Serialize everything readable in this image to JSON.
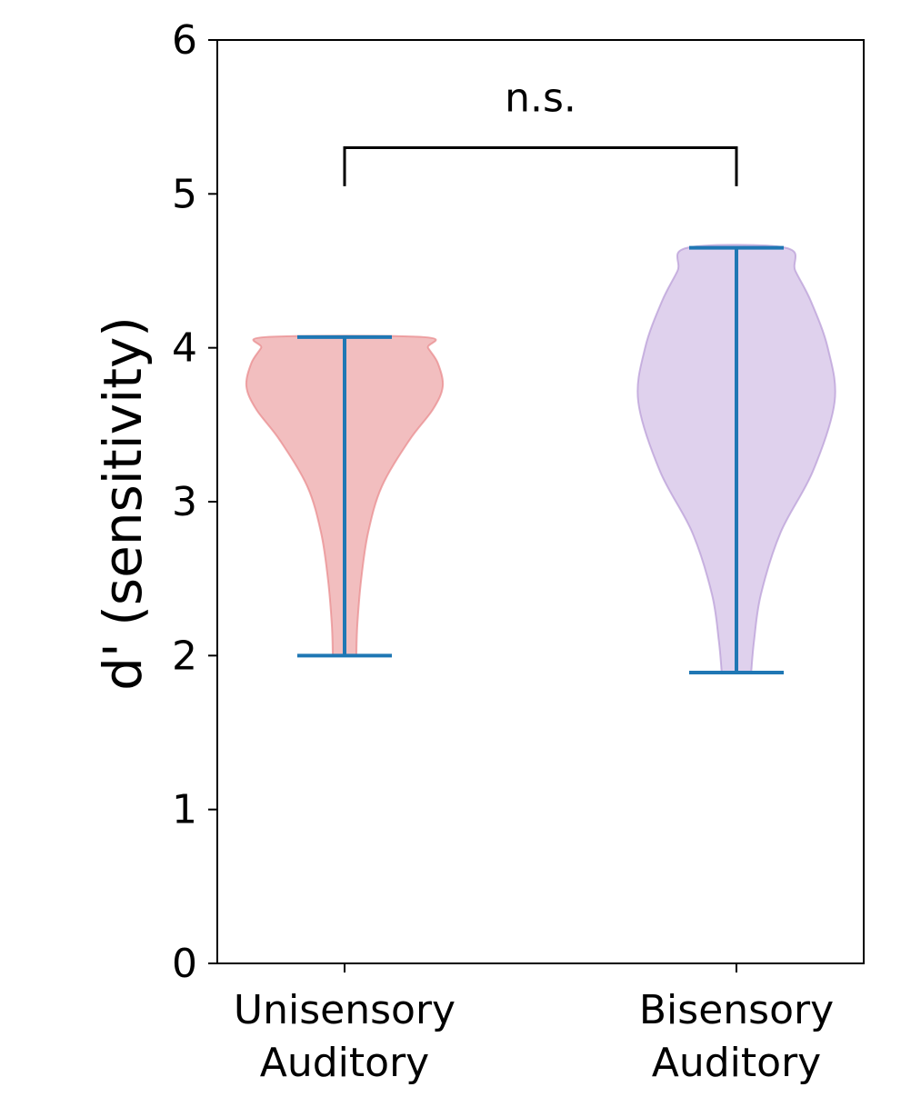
{
  "chart_data": {
    "type": "violin",
    "title": "",
    "ylabel": "d' (sensitivity)",
    "xlabel": "",
    "ylim": [
      0,
      6
    ],
    "yticks": [
      "0",
      "1",
      "2",
      "3",
      "4",
      "5",
      "6"
    ],
    "grid": false,
    "categories": [
      {
        "line1": "Unisensory",
        "line2": "Auditory"
      },
      {
        "line1": "Bisensory",
        "line2": "Auditory"
      }
    ],
    "series": [
      {
        "category_index": 0,
        "min": 2.0,
        "max": 4.07,
        "fill_color": "#e8888a",
        "fill_opacity": 0.55,
        "whisker_color": "#1f77b4",
        "density_profile": [
          [
            2.0,
            0.12
          ],
          [
            2.2,
            0.13
          ],
          [
            2.5,
            0.17
          ],
          [
            2.8,
            0.24
          ],
          [
            3.1,
            0.38
          ],
          [
            3.4,
            0.66
          ],
          [
            3.6,
            0.9
          ],
          [
            3.75,
            1.0
          ],
          [
            3.9,
            0.95
          ],
          [
            4.0,
            0.85
          ],
          [
            4.07,
            0.8
          ]
        ]
      },
      {
        "category_index": 1,
        "min": 1.89,
        "max": 4.65,
        "fill_color": "#b79ad6",
        "fill_opacity": 0.45,
        "whisker_color": "#1f77b4",
        "density_profile": [
          [
            1.89,
            0.15
          ],
          [
            2.1,
            0.18
          ],
          [
            2.4,
            0.25
          ],
          [
            2.8,
            0.45
          ],
          [
            3.2,
            0.78
          ],
          [
            3.65,
            1.0
          ],
          [
            4.0,
            0.93
          ],
          [
            4.3,
            0.76
          ],
          [
            4.5,
            0.6
          ],
          [
            4.65,
            0.5
          ]
        ]
      }
    ],
    "annotation": {
      "text": "n.s.",
      "left_category": 0,
      "right_category": 1,
      "bracket_y": 5.3,
      "tick_bottom_y": 5.05
    }
  }
}
